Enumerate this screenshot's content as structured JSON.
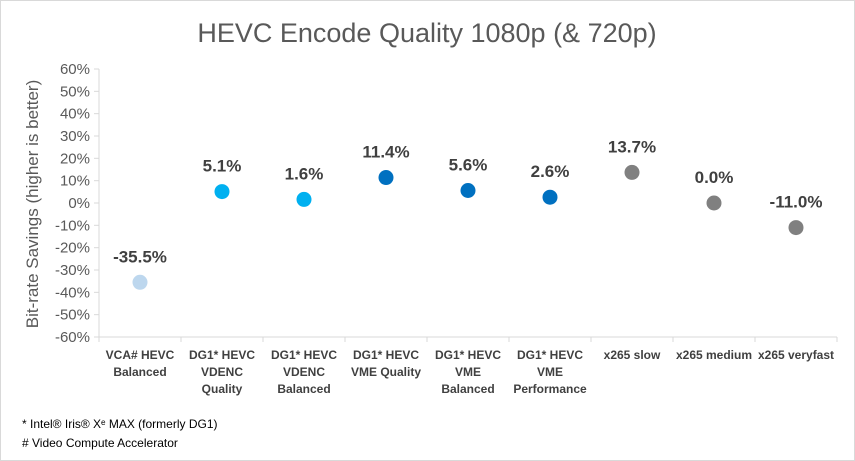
{
  "chart_data": {
    "type": "scatter",
    "title": "HEVC Encode Quality 1080p (& 720p)",
    "ylabel": "Bit-rate Savings (higher is better)",
    "xlabel": "",
    "ylim": [
      -60,
      60
    ],
    "ytick_step": 10,
    "ytick_format": "percent",
    "grid": false,
    "categories": [
      [
        "VCA# HEVC",
        "Balanced"
      ],
      [
        "DG1* HEVC",
        "VDENC",
        "Quality"
      ],
      [
        "DG1* HEVC",
        "VDENC",
        "Balanced"
      ],
      [
        "DG1* HEVC",
        "VME Quality"
      ],
      [
        "DG1* HEVC",
        "VME",
        "Balanced"
      ],
      [
        "DG1* HEVC",
        "VME",
        "Performance"
      ],
      [
        "x265 slow"
      ],
      [
        "x265 medium"
      ],
      [
        "x265 veryfast"
      ]
    ],
    "values": [
      -35.5,
      5.1,
      1.6,
      11.4,
      5.6,
      2.6,
      13.7,
      0.0,
      -11.0
    ],
    "data_labels": [
      "-35.5%",
      "5.1%",
      "1.6%",
      "11.4%",
      "5.6%",
      "2.6%",
      "13.7%",
      "0.0%",
      "-11.0%"
    ],
    "point_colors": [
      "#bdd7ee",
      "#00b0f0",
      "#00b0f0",
      "#0070c0",
      "#0070c0",
      "#0070c0",
      "#808080",
      "#808080",
      "#808080"
    ],
    "axis_color": "#d9d9d9"
  },
  "footnotes": [
    "* Intel® Iris® Xᵉ MAX (formerly DG1)",
    "# Video Compute Accelerator"
  ]
}
